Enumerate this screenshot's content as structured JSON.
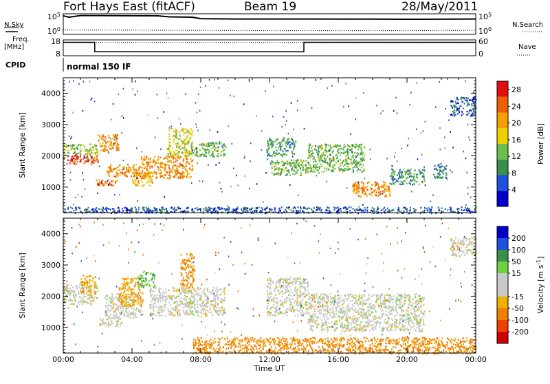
{
  "header": {
    "station": "Fort Hays East (fitACF)",
    "beam": "Beam 19",
    "date": "28/May/2011"
  },
  "side_labels": {
    "nsky": "N.Sky",
    "freq": "Freq.",
    "freq_unit": "[MHz]",
    "cpid": "CPID",
    "nsearch": "N.Search",
    "nave": "Nave"
  },
  "cpid_name": "normal 150 IF",
  "colors": {
    "power": [
      "#0000cc",
      "#2050e0",
      "#3a8f4a",
      "#6abf4a",
      "#f0d000",
      "#f5a000",
      "#f06000",
      "#e01010"
    ],
    "velocity": [
      "#d00000",
      "#f04000",
      "#f08000",
      "#f0b000",
      "#c8c8c8",
      "#c8c8c8",
      "#70d040",
      "#3a8f4a",
      "#2050e0",
      "#0000cc"
    ]
  },
  "chart_data": [
    {
      "type": "line",
      "panel": "noise",
      "left_ticks": [
        "10^5",
        "10^0"
      ],
      "right_ticks": [
        "10^5",
        "10^0"
      ],
      "series": [
        {
          "name": "N.Sky",
          "x": [
            "00:00",
            "00:20",
            "01:00",
            "02:00",
            "03:00",
            "05:30",
            "06:10",
            "07:30",
            "08:00",
            "10:00",
            "14:00",
            "18:00",
            "20:00",
            "24:00"
          ],
          "y": [
            100000.0,
            40000.0,
            120000.0,
            120000.0,
            110000.0,
            100000.0,
            50000.0,
            40000.0,
            15000.0,
            12000.0,
            12000.0,
            11000.0,
            10000.0,
            12000.0
          ]
        },
        {
          "name": "N.Search",
          "x": [
            "00:00",
            "04:00",
            "08:00",
            "12:00",
            "16:00",
            "20:00",
            "24:00"
          ],
          "y": [
            8,
            7,
            6,
            5,
            5,
            5,
            6
          ]
        }
      ]
    },
    {
      "type": "line",
      "panel": "freq-nave",
      "left_ticks": [
        "18",
        "8"
      ],
      "right_ticks": [
        "60",
        "0"
      ],
      "series": [
        {
          "name": "Freq.",
          "x": [
            "00:00",
            "01:50",
            "01:50",
            "14:00",
            "14:00",
            "24:00"
          ],
          "y": [
            16.5,
            16.5,
            10.5,
            10.5,
            16.5,
            16.5
          ]
        },
        {
          "name": "Nave",
          "x": [
            "00:00",
            "24:00"
          ],
          "y": [
            50,
            50
          ]
        }
      ]
    },
    {
      "type": "heatmap",
      "panel": "power",
      "x_range": [
        "00:00",
        "24:00"
      ],
      "x_ticks": [
        "00:00",
        "04:00",
        "08:00",
        "12:00",
        "16:00",
        "20:00",
        "00:00"
      ],
      "ylabel": "Slant Range [km]",
      "ylim": [
        180,
        4500
      ],
      "y_ticks": [
        1000,
        2000,
        3000,
        4000
      ],
      "colorbar_label": "Power [dB]",
      "colorbar_ticks": [
        4,
        8,
        12,
        16,
        20,
        24,
        28
      ],
      "colorbar_range": [
        0,
        30
      ],
      "features": [
        {
          "t_start": 0.0,
          "t_end": 2.0,
          "range_start": 1750,
          "range_end": 2050,
          "power_db": 26
        },
        {
          "t_start": 0.0,
          "t_end": 2.0,
          "range_start": 2050,
          "range_end": 2400,
          "power_db": 14
        },
        {
          "t_start": 2.0,
          "t_end": 3.2,
          "range_start": 2150,
          "range_end": 2700,
          "power_db": 22
        },
        {
          "t_start": 1.9,
          "t_end": 3.2,
          "range_start": 1050,
          "range_end": 1250,
          "power_db": 24
        },
        {
          "t_start": 2.5,
          "t_end": 4.5,
          "range_start": 1350,
          "range_end": 1750,
          "power_db": 22
        },
        {
          "t_start": 4.0,
          "t_end": 5.2,
          "range_start": 1050,
          "range_end": 1500,
          "power_db": 20
        },
        {
          "t_start": 4.5,
          "t_end": 7.5,
          "range_start": 1300,
          "range_end": 2000,
          "power_db": 22
        },
        {
          "t_start": 6.0,
          "t_end": 7.5,
          "range_start": 2000,
          "range_end": 2900,
          "power_db": 16
        },
        {
          "t_start": 7.4,
          "t_end": 9.4,
          "range_start": 2000,
          "range_end": 2450,
          "power_db": 12
        },
        {
          "t_start": 11.8,
          "t_end": 13.5,
          "range_start": 2000,
          "range_end": 2600,
          "power_db": 10
        },
        {
          "t_start": 12.0,
          "t_end": 14.2,
          "range_start": 1400,
          "range_end": 1900,
          "power_db": 12
        },
        {
          "t_start": 14.2,
          "t_end": 17.5,
          "range_start": 1500,
          "range_end": 2400,
          "power_db": 12
        },
        {
          "t_start": 16.8,
          "t_end": 19.0,
          "range_start": 700,
          "range_end": 1200,
          "power_db": 22
        },
        {
          "t_start": 19.0,
          "t_end": 21.0,
          "range_start": 1100,
          "range_end": 1600,
          "power_db": 10
        },
        {
          "t_start": 21.5,
          "t_end": 22.3,
          "range_start": 1300,
          "range_end": 1800,
          "power_db": 8
        },
        {
          "t_start": 22.5,
          "t_end": 24.0,
          "range_start": 3300,
          "range_end": 3900,
          "power_db": 6
        },
        {
          "t_start": 0.0,
          "t_end": 24.0,
          "range_start": 180,
          "range_end": 380,
          "power_db": 6
        }
      ]
    },
    {
      "type": "heatmap",
      "panel": "velocity",
      "x_range": [
        "00:00",
        "24:00"
      ],
      "x_ticks": [
        "00:00",
        "04:00",
        "08:00",
        "12:00",
        "16:00",
        "20:00",
        "00:00"
      ],
      "xlabel": "Time UT",
      "ylabel": "Slant Range [km]",
      "ylim": [
        180,
        4500
      ],
      "y_ticks": [
        1000,
        2000,
        3000,
        4000
      ],
      "colorbar_label": "Velocity [m s^-1]",
      "colorbar_ticks": [
        -200,
        -100,
        -50,
        -15,
        15,
        50,
        100,
        200
      ],
      "colorbar_range": [
        -250,
        250
      ],
      "features": [
        {
          "t_start": 0.0,
          "t_end": 2.0,
          "range_start": 1750,
          "range_end": 2400,
          "velocity": 0
        },
        {
          "t_start": 1.0,
          "t_end": 1.9,
          "range_start": 2100,
          "range_end": 2700,
          "velocity": -40
        },
        {
          "t_start": 2.0,
          "t_end": 3.3,
          "range_start": 1050,
          "range_end": 1300,
          "velocity": 0
        },
        {
          "t_start": 2.4,
          "t_end": 4.6,
          "range_start": 1300,
          "range_end": 2100,
          "velocity": 0
        },
        {
          "t_start": 3.2,
          "t_end": 4.6,
          "range_start": 1700,
          "range_end": 2600,
          "velocity": -40
        },
        {
          "t_start": 4.3,
          "t_end": 5.3,
          "range_start": 2300,
          "range_end": 2800,
          "velocity": 40
        },
        {
          "t_start": 5.0,
          "t_end": 9.4,
          "range_start": 1400,
          "range_end": 2300,
          "velocity": 0
        },
        {
          "t_start": 6.8,
          "t_end": 7.6,
          "range_start": 2300,
          "range_end": 3400,
          "velocity": -60
        },
        {
          "t_start": 11.8,
          "t_end": 14.2,
          "range_start": 1400,
          "range_end": 2600,
          "velocity": 0
        },
        {
          "t_start": 14.2,
          "t_end": 21.0,
          "range_start": 900,
          "range_end": 2100,
          "velocity": 0
        },
        {
          "t_start": 22.5,
          "t_end": 24.0,
          "range_start": 3300,
          "range_end": 3900,
          "velocity": 0
        },
        {
          "t_start": 7.5,
          "t_end": 24.0,
          "range_start": 180,
          "range_end": 700,
          "velocity": -60
        }
      ]
    }
  ]
}
